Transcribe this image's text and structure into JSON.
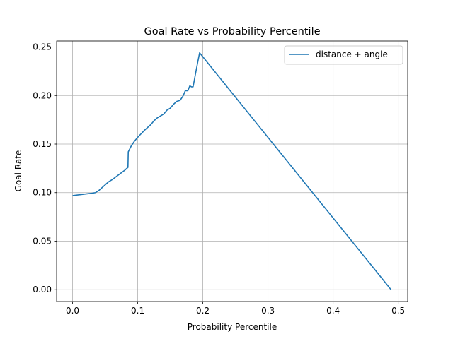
{
  "chart_data": {
    "type": "line",
    "title": "Goal Rate vs Probability Percentile",
    "xlabel": "Probability Percentile",
    "ylabel": "Goal Rate",
    "xlim": [
      -0.0245,
      0.5145
    ],
    "ylim": [
      -0.0122,
      0.2562
    ],
    "xticks": [
      0.0,
      0.1,
      0.2,
      0.3,
      0.4,
      0.5
    ],
    "xtick_labels": [
      "0.0",
      "0.1",
      "0.2",
      "0.3",
      "0.4",
      "0.5"
    ],
    "yticks": [
      0.0,
      0.05,
      0.1,
      0.15,
      0.2,
      0.25
    ],
    "ytick_labels": [
      "0.00",
      "0.05",
      "0.10",
      "0.15",
      "0.20",
      "0.25"
    ],
    "grid": true,
    "legend_position": "top-right",
    "colors": {
      "series": "#1f77b4",
      "grid": "#b0b0b0"
    },
    "series": [
      {
        "name": "distance + angle",
        "x": [
          0.0,
          0.01,
          0.02,
          0.03,
          0.035,
          0.04,
          0.045,
          0.05,
          0.055,
          0.06,
          0.07,
          0.08,
          0.085,
          0.0855,
          0.09,
          0.095,
          0.1,
          0.11,
          0.12,
          0.125,
          0.13,
          0.135,
          0.14,
          0.145,
          0.15,
          0.155,
          0.16,
          0.165,
          0.17,
          0.173,
          0.177,
          0.18,
          0.1825,
          0.185,
          0.19,
          0.195,
          0.489
        ],
        "y": [
          0.097,
          0.0978,
          0.0986,
          0.0994,
          0.1,
          0.102,
          0.105,
          0.108,
          0.111,
          0.113,
          0.118,
          0.123,
          0.126,
          0.142,
          0.148,
          0.153,
          0.157,
          0.164,
          0.17,
          0.174,
          0.177,
          0.179,
          0.181,
          0.185,
          0.187,
          0.191,
          0.194,
          0.195,
          0.2,
          0.205,
          0.205,
          0.21,
          0.209,
          0.209,
          0.227,
          0.244,
          0.0
        ]
      }
    ]
  }
}
